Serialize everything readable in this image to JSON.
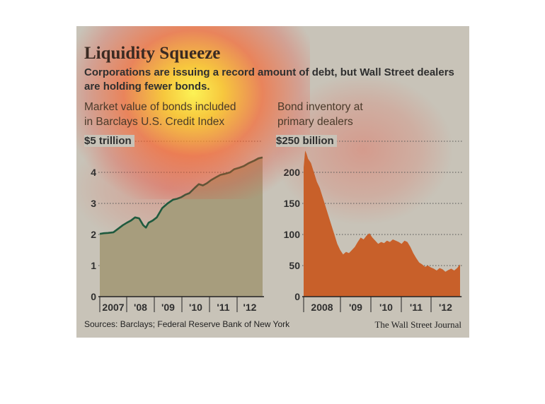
{
  "graphic": {
    "title": "Liquidity Squeeze",
    "subtitle": "Corporations are issuing a record amount of debt, but Wall Street dealers are holding fewer bonds.",
    "source": "Sources: Barclays; Federal Reserve Bank of New York",
    "credit": "The Wall Street Journal"
  },
  "panels": [
    {
      "title_line1": "Market value of bonds included",
      "title_line2": "in Barclays U.S. Credit Index",
      "unit_label": "$5 trillion"
    },
    {
      "title_line1": "Bond inventory at",
      "title_line2": "primary dealers",
      "unit_label": "$250 billion"
    }
  ],
  "colors": {
    "background": "#c8c3b8",
    "left_line": "#1f5a3e",
    "left_fill": "#a79d7d",
    "right_fill": "#c8602a"
  },
  "chart_data": [
    {
      "type": "area",
      "title": "Market value of bonds included in Barclays U.S. Credit Index",
      "ylabel": "$ trillion",
      "ylim": [
        0,
        5
      ],
      "yticks": [
        0,
        1,
        2,
        3,
        4,
        5
      ],
      "ytick_labels": [
        "0",
        "1",
        "2",
        "3",
        "4",
        "$5 trillion"
      ],
      "xlim": [
        2007.0,
        2013.0
      ],
      "xtick_labels": [
        "2007",
        "'08",
        "'09",
        "'10",
        "'11",
        "'12"
      ],
      "grid": true,
      "series": [
        {
          "x": [
            2007.0,
            2007.15,
            2007.3,
            2007.5,
            2007.7,
            2007.85,
            2008.0,
            2008.15,
            2008.3,
            2008.45,
            2008.6,
            2008.7,
            2008.8,
            2008.95,
            2009.1,
            2009.3,
            2009.5,
            2009.7,
            2009.85,
            2010.0,
            2010.15,
            2010.3,
            2010.5,
            2010.65,
            2010.8,
            2010.95,
            2011.1,
            2011.3,
            2011.45,
            2011.6,
            2011.8,
            2011.95,
            2012.15,
            2012.3,
            2012.5,
            2012.7,
            2012.85,
            2013.0
          ],
          "y": [
            2.02,
            2.04,
            2.05,
            2.07,
            2.2,
            2.3,
            2.38,
            2.45,
            2.55,
            2.52,
            2.3,
            2.22,
            2.38,
            2.45,
            2.55,
            2.85,
            3.0,
            3.12,
            3.15,
            3.2,
            3.28,
            3.33,
            3.5,
            3.62,
            3.58,
            3.65,
            3.75,
            3.85,
            3.92,
            3.95,
            4.0,
            4.1,
            4.15,
            4.2,
            4.3,
            4.38,
            4.45,
            4.48
          ]
        }
      ]
    },
    {
      "type": "area",
      "title": "Bond inventory at primary dealers",
      "ylabel": "$ billion",
      "ylim": [
        0,
        250
      ],
      "yticks": [
        0,
        50,
        100,
        150,
        200,
        250
      ],
      "ytick_labels": [
        "0",
        "50",
        "100",
        "150",
        "200",
        "$250 billion"
      ],
      "xlim": [
        2007.65,
        2013.0
      ],
      "xtick_labels": [
        "2008",
        "'09",
        "'10",
        "'11",
        "'12"
      ],
      "grid": true,
      "series": [
        {
          "x": [
            2007.65,
            2007.7,
            2007.75,
            2007.8,
            2007.9,
            2008.0,
            2008.1,
            2008.2,
            2008.3,
            2008.4,
            2008.5,
            2008.6,
            2008.7,
            2008.8,
            2008.9,
            2009.0,
            2009.1,
            2009.2,
            2009.3,
            2009.4,
            2009.5,
            2009.6,
            2009.7,
            2009.8,
            2009.9,
            2010.0,
            2010.1,
            2010.2,
            2010.3,
            2010.4,
            2010.5,
            2010.6,
            2010.7,
            2010.8,
            2010.9,
            2011.0,
            2011.1,
            2011.2,
            2011.3,
            2011.4,
            2011.5,
            2011.6,
            2011.7,
            2011.8,
            2011.9,
            2012.0,
            2012.1,
            2012.2,
            2012.3,
            2012.4,
            2012.5,
            2012.6,
            2012.7,
            2012.8,
            2012.9,
            2013.0
          ],
          "y": [
            208,
            235,
            230,
            222,
            215,
            200,
            185,
            175,
            160,
            145,
            130,
            115,
            100,
            85,
            75,
            68,
            72,
            70,
            75,
            80,
            88,
            95,
            92,
            98,
            102,
            95,
            90,
            85,
            88,
            86,
            90,
            88,
            92,
            90,
            88,
            85,
            90,
            88,
            80,
            70,
            62,
            55,
            52,
            48,
            50,
            47,
            45,
            42,
            46,
            44,
            40,
            43,
            45,
            42,
            46,
            52
          ]
        }
      ]
    }
  ]
}
